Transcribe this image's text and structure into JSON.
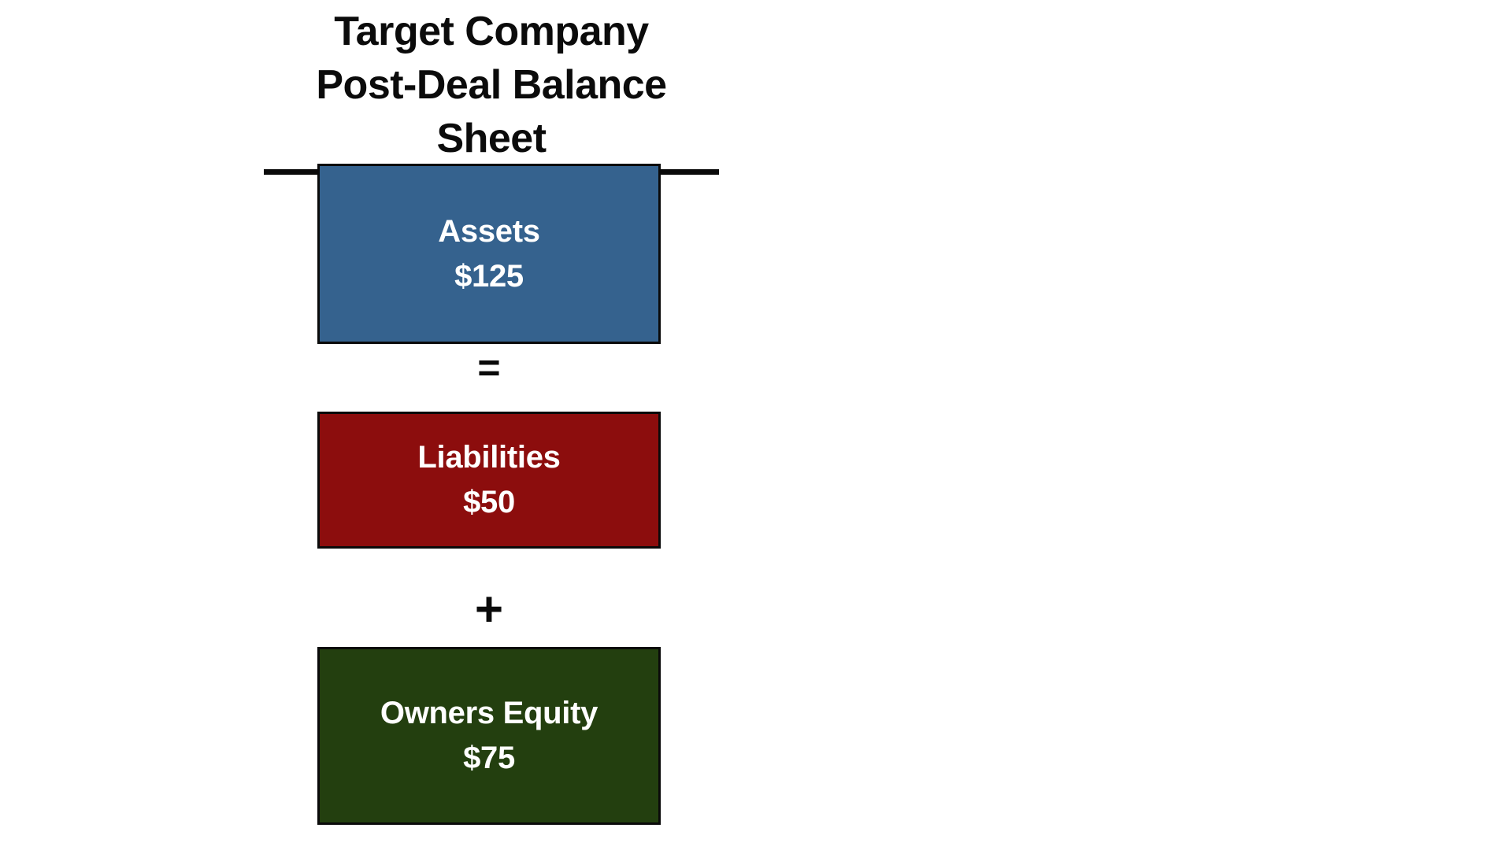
{
  "title": {
    "line1": "Target Company",
    "line2": "Post-Deal Balance Sheet"
  },
  "equation": {
    "operators": {
      "equals": "=",
      "plus": "+"
    },
    "boxes": [
      {
        "label": "Assets",
        "value": "$125",
        "color": "#35628E"
      },
      {
        "label": "Liabilities",
        "value": "$50",
        "color": "#8C0D0D"
      },
      {
        "label": "Owners Equity",
        "value": "$75",
        "color": "#233F0F"
      }
    ]
  },
  "colors": {
    "background": "#FFFFFF",
    "box_text": "#FFFFFF",
    "box_border": "#0A0A0A",
    "title_text": "#0B0B0B",
    "underline": "#0A0A0A",
    "assets_fill": "#35628E",
    "liabilities_fill": "#8C0D0D",
    "owners_equity_fill": "#233F0F"
  }
}
